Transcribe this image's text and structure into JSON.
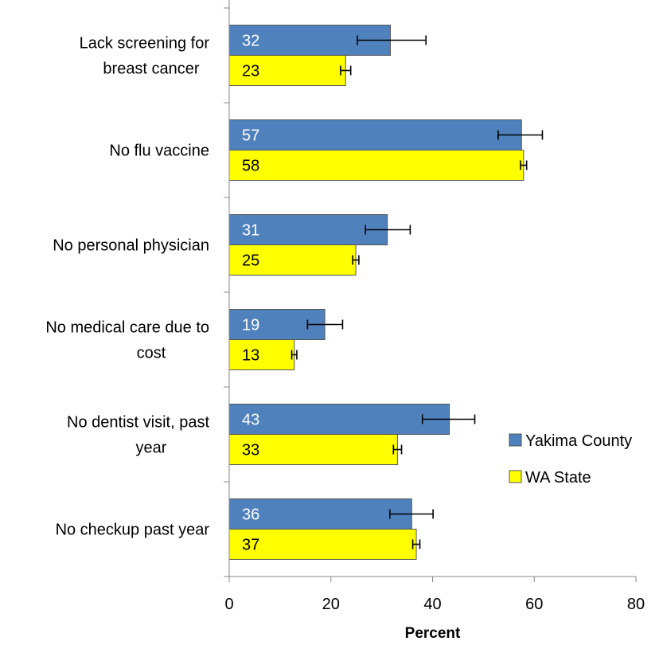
{
  "chart_data": {
    "type": "bar",
    "orientation": "horizontal",
    "categories": [
      [
        "Lack screening for",
        "breast cancer"
      ],
      [
        "No flu vaccine"
      ],
      [
        "No personal physician"
      ],
      [
        "No medical care due to",
        "cost"
      ],
      [
        "No dentist visit, past",
        "year"
      ],
      [
        "No checkup past year"
      ]
    ],
    "series": [
      {
        "name": "Yakima County",
        "color": "#4F81BD",
        "label_color": "#ffffff",
        "values": [
          32,
          57,
          31,
          19,
          43,
          36
        ],
        "plot_values": [
          31.7,
          57.5,
          31.1,
          18.8,
          43.3,
          35.9
        ],
        "ci_low": [
          25.2,
          52.9,
          26.8,
          15.4,
          38.0,
          31.6
        ],
        "ci_high": [
          38.7,
          61.6,
          35.6,
          22.3,
          48.3,
          40.1
        ]
      },
      {
        "name": "WA State",
        "color": "#FFFF00",
        "label_color": "#000000",
        "values": [
          23,
          58,
          25,
          13,
          33,
          37
        ],
        "plot_values": [
          22.9,
          57.9,
          24.9,
          12.8,
          33.1,
          36.8
        ],
        "ci_low": [
          21.9,
          57.3,
          24.3,
          12.3,
          32.3,
          36.1
        ],
        "ci_high": [
          23.9,
          58.5,
          25.5,
          13.3,
          33.9,
          37.5
        ]
      }
    ],
    "xlabel": "Percent",
    "ylabel": "",
    "title": "",
    "xlim": [
      0,
      80
    ],
    "xticks": [
      0,
      20,
      40,
      60,
      80
    ],
    "grid": false,
    "legend_position": "right"
  }
}
